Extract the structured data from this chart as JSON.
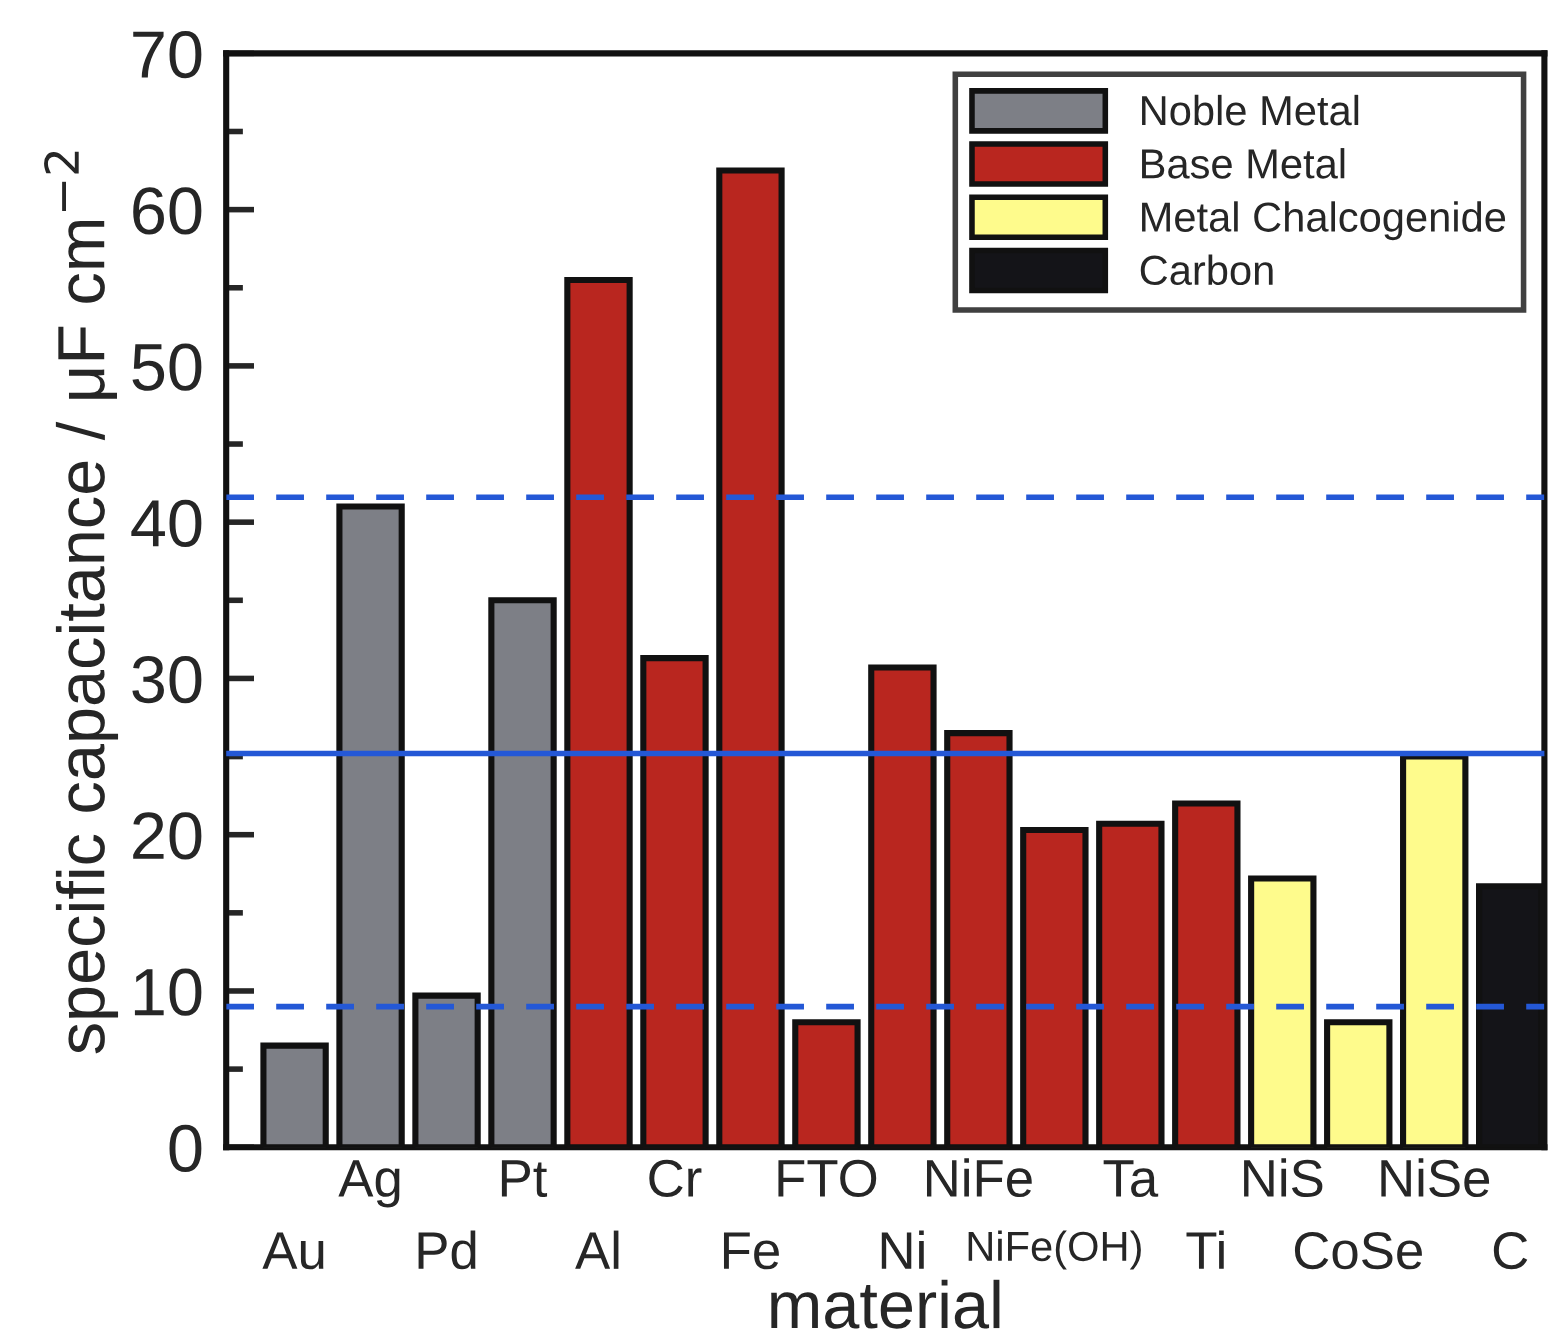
{
  "chart_data": {
    "type": "bar",
    "xlabel": "material",
    "ylabel": "specific capacitance / μF cm$^{−2}$",
    "categories": [
      "Au",
      "Ag",
      "Pd",
      "Pt",
      "Al",
      "Cr",
      "Fe",
      "FTO",
      "Ni",
      "NiFe",
      "NiFe(OH)",
      "Ta",
      "Ti",
      "NiS",
      "CoSe",
      "NiSe",
      "C"
    ],
    "series": [
      {
        "name": "Noble Metal",
        "color": "#7d7f86",
        "values": [
          6.5,
          41,
          9.7,
          35,
          null,
          null,
          null,
          null,
          null,
          null,
          null,
          null,
          null,
          null,
          null,
          null,
          null
        ]
      },
      {
        "name": "Base Metal",
        "color": "#b9261f",
        "values": [
          null,
          null,
          null,
          null,
          55.5,
          31.3,
          62.5,
          8,
          30.7,
          26.5,
          20.3,
          20.7,
          22,
          null,
          null,
          null,
          null
        ]
      },
      {
        "name": "Metal Chalcogenide",
        "color": "#fefb8c",
        "values": [
          null,
          null,
          null,
          null,
          null,
          null,
          null,
          null,
          null,
          null,
          null,
          null,
          null,
          17.2,
          8,
          25,
          null
        ]
      },
      {
        "name": "Carbon",
        "color": "#141418",
        "values": [
          null,
          null,
          null,
          null,
          null,
          null,
          null,
          null,
          null,
          null,
          null,
          null,
          null,
          null,
          null,
          null,
          16.7
        ]
      }
    ],
    "ylim": [
      0,
      70
    ],
    "yticks": [
      0,
      {
        "value": 5,
        "label": null
      },
      10,
      {
        "value": 15,
        "label": null
      },
      20,
      {
        "value": 25,
        "label": null
      },
      30,
      {
        "value": 35,
        "label": null
      },
      40,
      {
        "value": 45,
        "label": null
      },
      50,
      {
        "value": 55,
        "label": null
      },
      60,
      {
        "value": 65,
        "label": null
      },
      70
    ],
    "ref_lines": [
      {
        "axis": "y",
        "value": 41.6,
        "color": "#2458d6",
        "line_style": "dashed"
      },
      {
        "axis": "y",
        "value": 25.2,
        "color": "#2458d6",
        "line_style": "solid"
      },
      {
        "axis": "y",
        "value": 9,
        "color": "#2458d6",
        "line_style": "dashed"
      }
    ],
    "legend": "top right",
    "grid": false
  }
}
